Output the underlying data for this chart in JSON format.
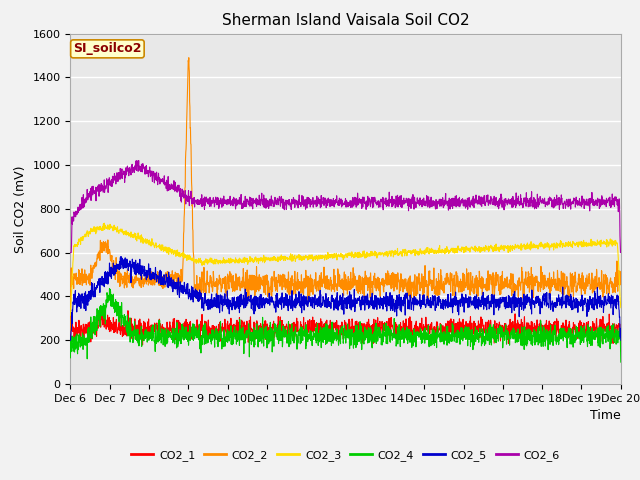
{
  "title": "Sherman Island Vaisala Soil CO2",
  "ylabel": "Soil CO2 (mV)",
  "xlabel": "Time",
  "watermark": "SI_soilco2",
  "ylim": [
    0,
    1600
  ],
  "xlim_days": [
    0,
    14
  ],
  "tick_labels": [
    "Dec 6",
    "Dec 7",
    "Dec 8",
    "Dec 9",
    "Dec 10",
    "Dec 11",
    "Dec 12",
    "Dec 13",
    "Dec 14",
    "Dec 15",
    "Dec 16",
    "Dec 17",
    "Dec 18",
    "Dec 19",
    "Dec 20"
  ],
  "series_colors": {
    "CO2_1": "#ff0000",
    "CO2_2": "#ff8c00",
    "CO2_3": "#ffdd00",
    "CO2_4": "#00cc00",
    "CO2_5": "#0000cc",
    "CO2_6": "#aa00aa"
  },
  "bg_color": "#e8e8e8",
  "grid_color": "#ffffff",
  "title_fontsize": 11,
  "axis_fontsize": 9,
  "tick_fontsize": 8,
  "legend_fontsize": 8,
  "watermark_fontsize": 9
}
